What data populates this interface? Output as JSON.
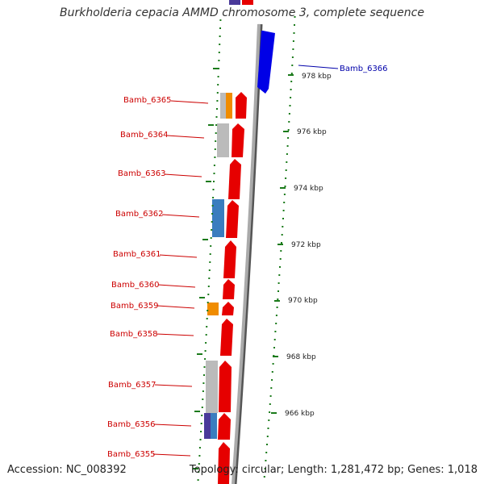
{
  "title": "Burkholderia cepacia AMMD chromosome 3, complete sequence",
  "footer": {
    "accession": "Accession: NC_008392",
    "summary": "Topology: circular; Length: 1,281,472 bp; Genes: 1,018"
  },
  "colors": {
    "forward_gene": "#e60000",
    "reverse_gene": "#0000e6",
    "gray_feature": "#bbbbbb",
    "orange_feature": "#f08c00",
    "steelblue_feature": "#3a7dbf",
    "purple_feature": "#4a3a9a",
    "tick": "#1a7a1a",
    "label_red": "#cc0000",
    "label_blue": "#0000aa"
  },
  "kbp_labels": [
    "978 kbp",
    "976 kbp",
    "974 kbp",
    "972 kbp",
    "970 kbp",
    "968 kbp",
    "966 kbp"
  ],
  "genes": [
    {
      "label": "Bamb_6366",
      "strand": "reverse"
    },
    {
      "label": "Bamb_6365",
      "strand": "forward"
    },
    {
      "label": "Bamb_6364",
      "strand": "forward"
    },
    {
      "label": "Bamb_6363",
      "strand": "forward"
    },
    {
      "label": "Bamb_6362",
      "strand": "forward"
    },
    {
      "label": "Bamb_6361",
      "strand": "forward"
    },
    {
      "label": "Bamb_6360",
      "strand": "forward"
    },
    {
      "label": "Bamb_6359",
      "strand": "forward"
    },
    {
      "label": "Bamb_6358",
      "strand": "forward"
    },
    {
      "label": "Bamb_6357",
      "strand": "forward"
    },
    {
      "label": "Bamb_6356",
      "strand": "forward"
    },
    {
      "label": "Bamb_6355",
      "strand": "forward"
    }
  ]
}
